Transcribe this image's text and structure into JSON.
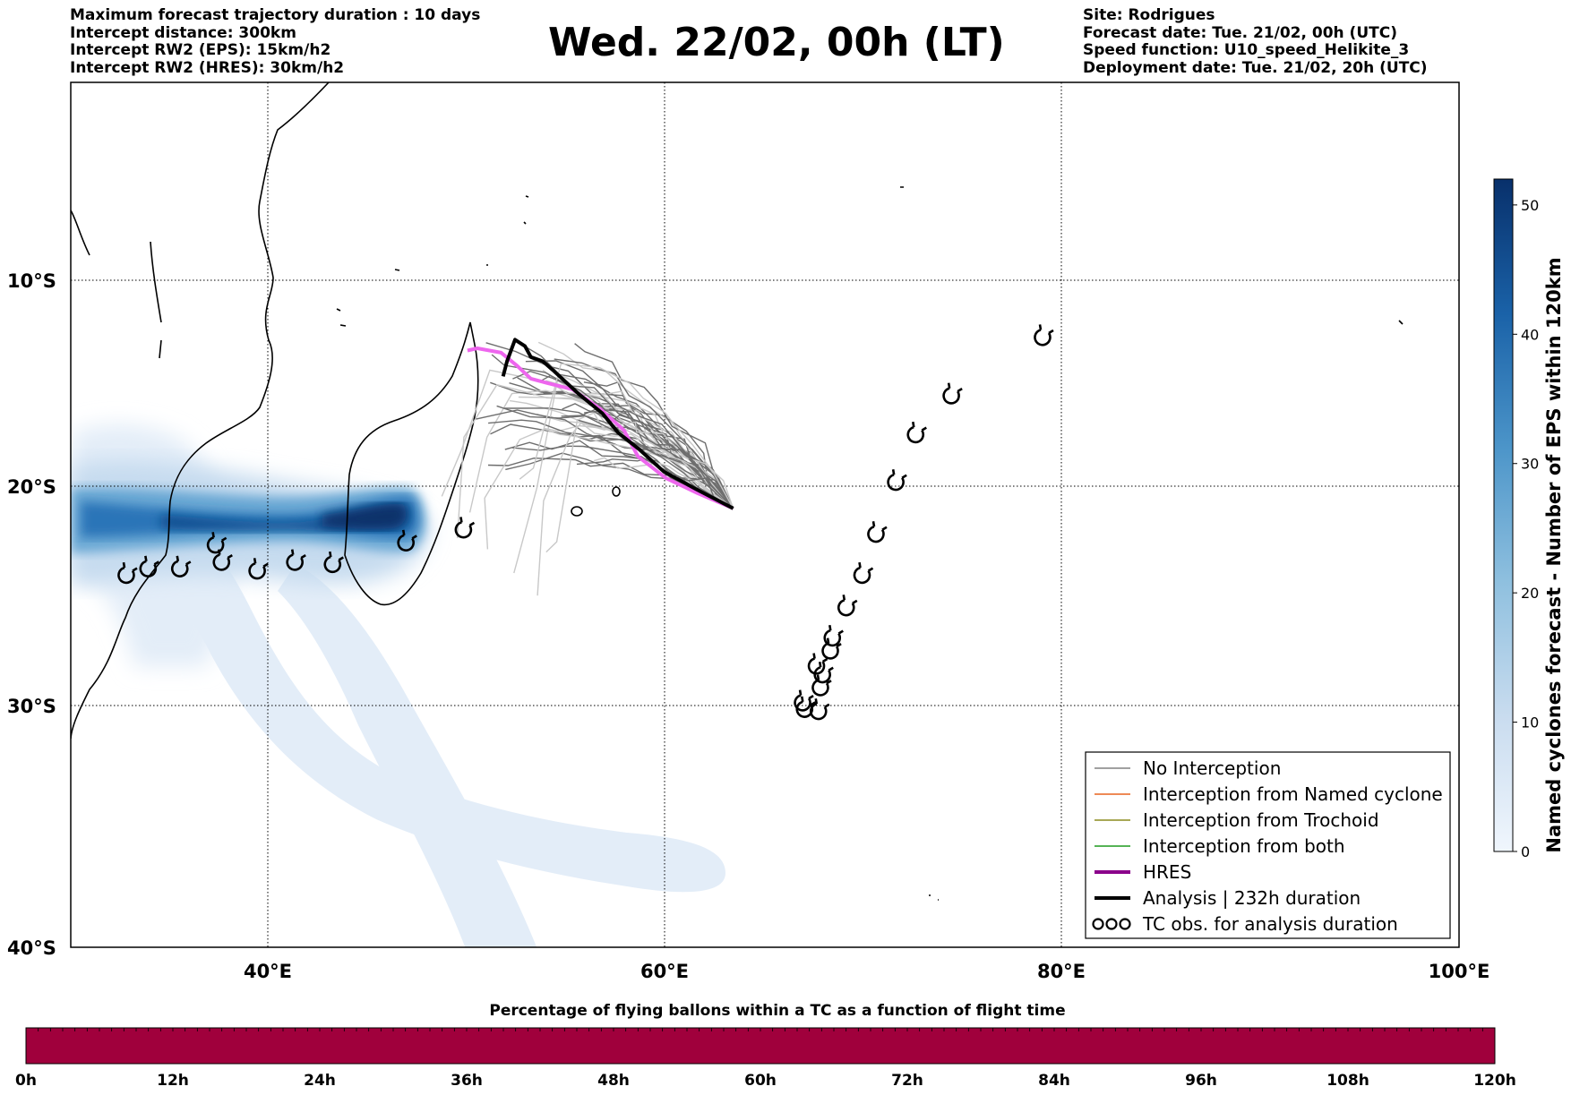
{
  "header": {
    "left": [
      "Maximum forecast trajectory duration : 10 days",
      "Intercept distance: 300km",
      "Intercept RW2 (EPS):  15km/h2",
      "Intercept RW2 (HRES): 30km/h2"
    ],
    "right": [
      "Site: Rodrigues",
      "Forecast date: Tue. 21/02, 00h (UTC)",
      "Speed function: U10_speed_Helikite_3",
      "Deployment date: Tue. 21/02, 20h (UTC)"
    ],
    "title": "Wed. 22/02, 00h (LT)"
  },
  "map": {
    "lon_range": [
      30,
      100
    ],
    "lat_range": [
      -40,
      0
    ],
    "lat_ticks": [
      "10°S",
      "20°S",
      "30°S",
      "40°S"
    ],
    "lon_ticks": [
      "40°E",
      "60°E",
      "80°E",
      "100°E"
    ],
    "gridlines": true,
    "release_site": {
      "name": "Rodrigues",
      "lon": 63.4,
      "lat": -19.7
    }
  },
  "colorbar": {
    "label": "Named cyclones forecast - Number of EPS within 120km",
    "ticks": [
      "0",
      "10",
      "20",
      "30",
      "40",
      "50"
    ],
    "range": [
      0,
      52
    ]
  },
  "legend": {
    "items": [
      {
        "label": "No Interception",
        "color": "#808080",
        "style": "thin"
      },
      {
        "label": "Interception from Named cyclone",
        "color": "#e8641e",
        "style": "thin"
      },
      {
        "label": "Interception from Trochoid",
        "color": "#8c8c1e",
        "style": "thin"
      },
      {
        "label": "Interception from both",
        "color": "#1e9a1e",
        "style": "thin"
      },
      {
        "label": "HRES",
        "color": "#8b008b",
        "style": "thick"
      },
      {
        "label": "Analysis | 232h duration",
        "color": "#000000",
        "style": "thick"
      },
      {
        "label": "TC obs. for analysis duration",
        "color": "#000000",
        "style": "symbol"
      }
    ]
  },
  "timebar": {
    "title": "Percentage of flying ballons within a TC as a function of flight time",
    "ticks": [
      "0h",
      "12h",
      "24h",
      "36h",
      "48h",
      "60h",
      "72h",
      "84h",
      "96h",
      "108h",
      "120h"
    ],
    "color": "#a0003c"
  },
  "chart_data": {
    "type": "map",
    "analysis_track": [
      [
        63.4,
        -19.7
      ],
      [
        61.5,
        -18.8
      ],
      [
        59.9,
        -18.0
      ],
      [
        58.7,
        -17.0
      ],
      [
        57.6,
        -16.2
      ],
      [
        56.8,
        -15.3
      ],
      [
        55.6,
        -14.4
      ],
      [
        54.3,
        -13.3
      ],
      [
        53.8,
        -12.9
      ],
      [
        53.2,
        -12.7
      ],
      [
        52.9,
        -12.2
      ],
      [
        52.4,
        -11.9
      ],
      [
        52.0,
        -12.9
      ],
      [
        51.8,
        -13.6
      ]
    ],
    "hres_track": [
      [
        63.4,
        -19.7
      ],
      [
        61.6,
        -19.0
      ],
      [
        60.0,
        -18.3
      ],
      [
        58.6,
        -17.3
      ],
      [
        57.9,
        -16.1
      ],
      [
        56.7,
        -15.1
      ],
      [
        55.3,
        -14.2
      ],
      [
        54.0,
        -13.9
      ],
      [
        53.2,
        -13.7
      ],
      [
        52.5,
        -13.1
      ],
      [
        51.7,
        -12.5
      ],
      [
        50.5,
        -12.3
      ],
      [
        50.0,
        -12.4
      ]
    ],
    "tc_observations": [
      [
        79.0,
        -11.8
      ],
      [
        74.4,
        -14.5
      ],
      [
        72.6,
        -16.3
      ],
      [
        71.6,
        -18.5
      ],
      [
        70.6,
        -20.9
      ],
      [
        69.9,
        -22.8
      ],
      [
        69.1,
        -24.3
      ],
      [
        68.4,
        -25.7
      ],
      [
        68.3,
        -26.3
      ],
      [
        67.6,
        -27.0
      ],
      [
        67.9,
        -27.4
      ],
      [
        67.8,
        -28.0
      ],
      [
        66.9,
        -28.7
      ],
      [
        67.0,
        -29.0
      ],
      [
        67.7,
        -29.1
      ],
      [
        49.8,
        -20.7
      ],
      [
        46.9,
        -21.3
      ],
      [
        43.2,
        -22.3
      ],
      [
        41.3,
        -22.2
      ],
      [
        39.4,
        -22.6
      ],
      [
        37.6,
        -22.2
      ],
      [
        37.3,
        -21.4
      ],
      [
        35.5,
        -22.5
      ],
      [
        33.9,
        -22.5
      ],
      [
        32.8,
        -22.8
      ]
    ],
    "eps_density_core": {
      "lon": [
        30,
        48
      ],
      "lat": [
        -23,
        -20.5
      ],
      "max": 52
    }
  }
}
